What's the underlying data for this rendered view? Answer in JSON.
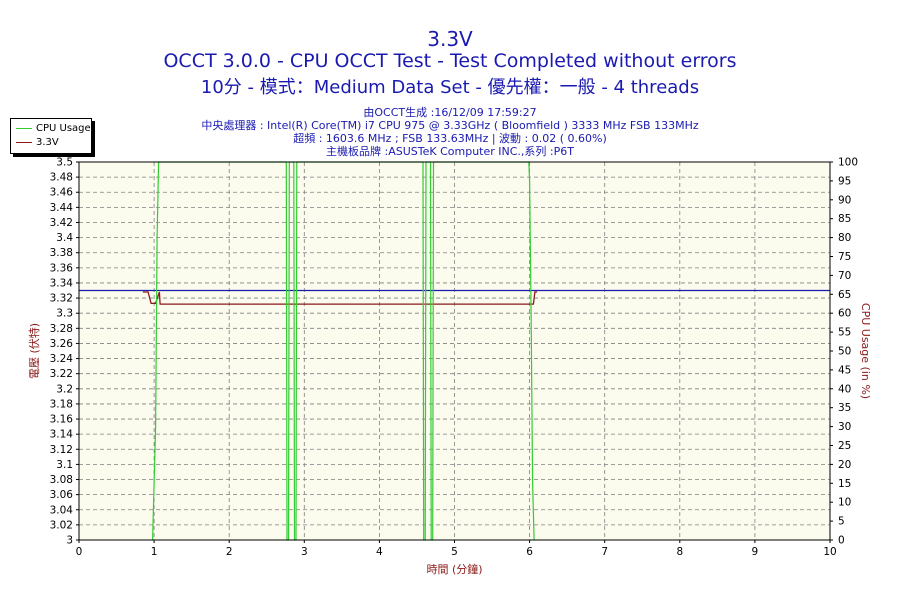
{
  "header": {
    "title": "3.3V",
    "subtitle1": "OCCT 3.0.0 - CPU OCCT Test - Test Completed without errors",
    "subtitle2": "10分 - 模式：Medium Data Set - 優先權：一般 - 4 threads"
  },
  "info": {
    "line1": "由OCCT生成 :16/12/09 17:59:27",
    "line2": "中央處理器 : Intel(R) Core(TM) i7 CPU 975 @ 3.33GHz ( Bloomfield ) 3333 MHz FSB 133MHz",
    "line3": "超頻 : 1603.6 MHz ; FSB 133.63MHz | 波動 : 0.02 ( 0.60%)",
    "line4": "主機板品牌 :ASUSTeK Computer INC.,系列 :P6T"
  },
  "colors": {
    "background": "#ffffff",
    "plot_bg": "#fbfbee",
    "title": "#1a1ab0",
    "axis_label": "#8b1a1a",
    "cpu_usage": "#33cc33",
    "voltage": "#8b1a1a",
    "hline": "#1a1ab0"
  },
  "chart_data": {
    "type": "line",
    "xlabel": "時間 (分鐘)",
    "ylabel": "電壓 (伏特)",
    "y2label": "CPU Usage (in %)",
    "xlim": [
      0,
      10
    ],
    "ylim": [
      3,
      3.5
    ],
    "y2lim": [
      0,
      100
    ],
    "x_ticks": [
      "0",
      "1",
      "2",
      "3",
      "4",
      "5",
      "6",
      "7",
      "8",
      "9",
      "10"
    ],
    "y_ticks": [
      "3.5",
      "3.48",
      "3.46",
      "3.44",
      "3.42",
      "3.4",
      "3.38",
      "3.36",
      "3.34",
      "3.32",
      "3.3",
      "3.28",
      "3.26",
      "3.24",
      "3.22",
      "3.2",
      "3.18",
      "3.16",
      "3.14",
      "3.12",
      "3.1",
      "3.08",
      "3.06",
      "3.04",
      "3.02",
      "3"
    ],
    "y2_ticks": [
      "100",
      "95",
      "90",
      "85",
      "80",
      "75",
      "70",
      "65",
      "60",
      "55",
      "50",
      "45",
      "40",
      "35",
      "30",
      "25",
      "20",
      "15",
      "10",
      "5",
      "0"
    ],
    "grid": true,
    "legend_position": "top-left",
    "legend": [
      "CPU Usage",
      "3.3V"
    ],
    "series": [
      {
        "name": "CPU Usage",
        "axis": "y2",
        "x": [
          0.98,
          1.02,
          1.04,
          1.06,
          1.08,
          2.76,
          2.77,
          2.79,
          2.8,
          2.82,
          2.84,
          2.86,
          2.87,
          2.89,
          2.9,
          4.58,
          4.59,
          4.61,
          4.62,
          4.64,
          4.66,
          4.68,
          4.69,
          4.71,
          4.72,
          5.99,
          6.0,
          6.02,
          6.04,
          6.06
        ],
        "values": [
          0,
          30,
          80,
          100,
          100,
          100,
          0,
          0,
          100,
          100,
          100,
          100,
          0,
          0,
          100,
          100,
          0,
          0,
          100,
          100,
          100,
          100,
          0,
          0,
          100,
          100,
          95,
          60,
          15,
          0
        ]
      },
      {
        "name": "3.3V",
        "axis": "y1",
        "x": [
          0.85,
          0.92,
          0.96,
          1.02,
          1.07,
          1.08,
          6.05,
          6.07,
          6.1
        ],
        "values": [
          3.328,
          3.328,
          3.313,
          3.313,
          3.328,
          3.312,
          3.312,
          3.328,
          3.328
        ]
      },
      {
        "name": "3.33 reference",
        "axis": "y1",
        "x": [
          0,
          10
        ],
        "values": [
          3.33,
          3.33
        ]
      }
    ]
  }
}
